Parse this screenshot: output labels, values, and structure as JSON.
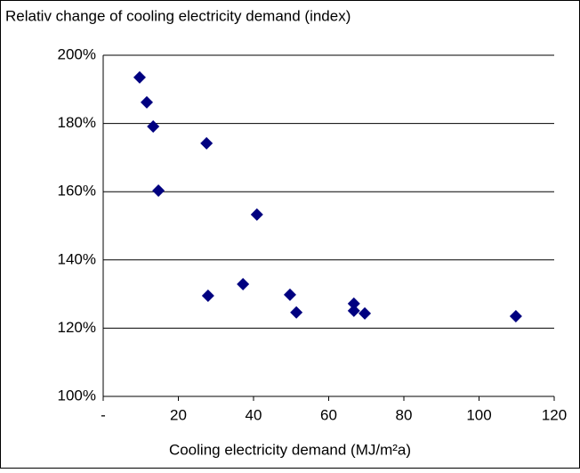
{
  "chart_data": {
    "type": "scatter",
    "title": "Relativ change of cooling electricity demand  (index)",
    "x_label": "Cooling electricity demand  (MJ/m²a)",
    "color": "#000080",
    "x": [
      9.7,
      11.6,
      13.3,
      14.7,
      27.5,
      27.9,
      40.9,
      37.2,
      49.7,
      51.4,
      66.7,
      66.7,
      69.6,
      109.8
    ],
    "values": [
      193.5,
      186.2,
      179.1,
      160.3,
      174.2,
      129.5,
      153.3,
      132.9,
      129.8,
      124.6,
      127.2,
      125.1,
      124.3,
      123.5
    ],
    "xlim": [
      0,
      120
    ],
    "xticks": [
      {
        "value": 0,
        "label": "-"
      },
      20,
      40,
      60,
      80,
      100,
      120
    ],
    "ylim": [
      100,
      200
    ],
    "yticks": [
      {
        "value": 100,
        "label": "100%"
      },
      {
        "value": 120,
        "label": "120%"
      },
      {
        "value": 140,
        "label": "140%"
      },
      {
        "value": 160,
        "label": "160%"
      },
      {
        "value": 180,
        "label": "180%"
      },
      {
        "value": 200,
        "label": "200%"
      }
    ],
    "grid": true
  }
}
